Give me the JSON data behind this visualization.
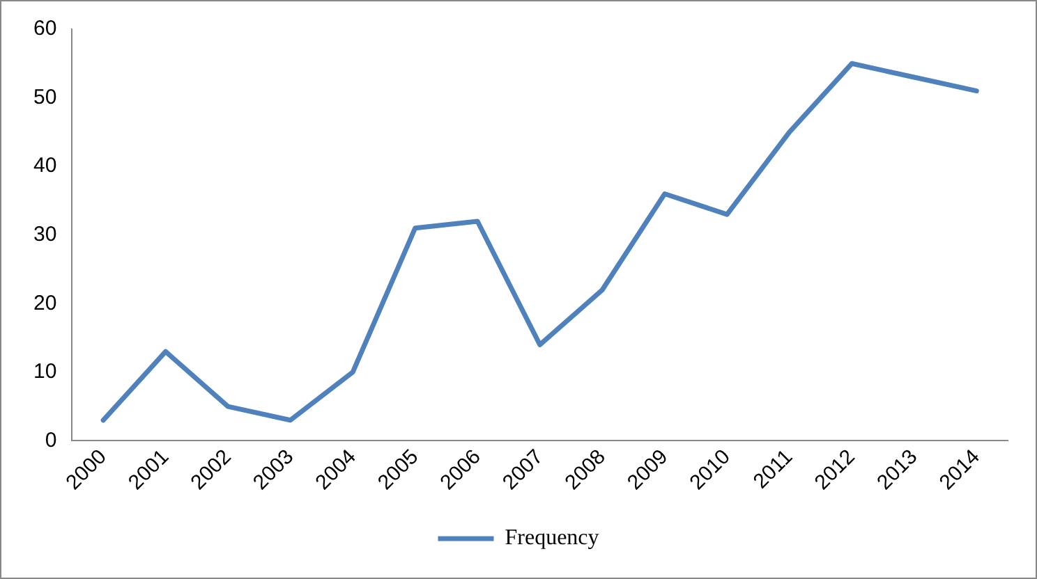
{
  "chart_data": {
    "type": "line",
    "categories": [
      "2000",
      "2001",
      "2002",
      "2003",
      "2004",
      "2005",
      "2006",
      "2007",
      "2008",
      "2009",
      "2010",
      "2011",
      "2012",
      "2013",
      "2014"
    ],
    "series": [
      {
        "name": "Frequency",
        "color": "#4f81bd",
        "values": [
          3,
          13,
          5,
          3,
          10,
          31,
          32,
          14,
          22,
          36,
          33,
          45,
          55,
          53,
          51
        ]
      }
    ],
    "ylim": [
      0,
      60
    ],
    "yticks": [
      0,
      10,
      20,
      30,
      40,
      50,
      60
    ],
    "grid": false,
    "legend": "bottom",
    "marker": "none",
    "line_style": "solid"
  }
}
